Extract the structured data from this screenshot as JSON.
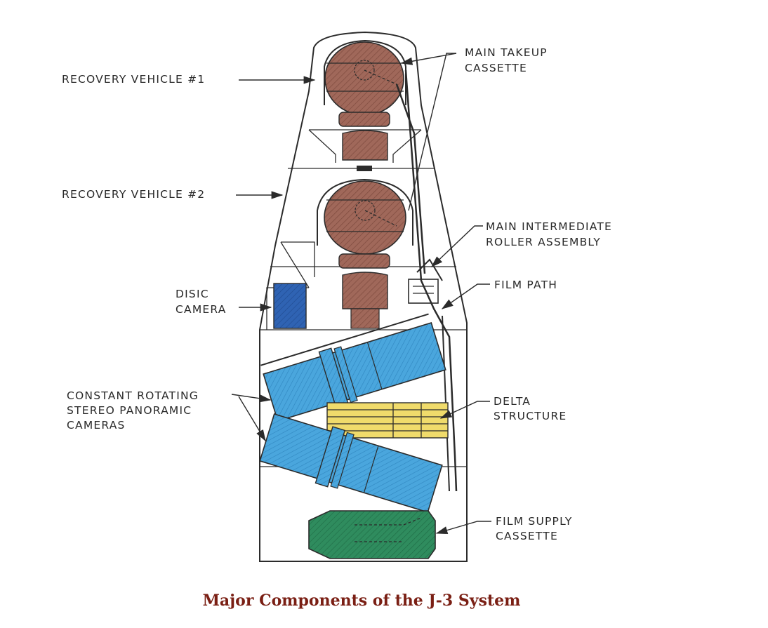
{
  "labels": {
    "recovery_vehicle_1": "RECOVERY VEHICLE #1",
    "recovery_vehicle_2": "RECOVERY VEHICLE #2",
    "main_takeup_cassette": [
      "MAIN TAKEUP",
      "CASSETTE"
    ],
    "main_intermediate_roller_assembly": [
      "MAIN INTERMEDIATE",
      "ROLLER ASSEMBLY"
    ],
    "film_path": "FILM PATH",
    "disic_camera": [
      "DISIC",
      "CAMERA"
    ],
    "constant_rotating_stereo_panoramic_cameras": [
      "CONSTANT ROTATING",
      "STEREO PANORAMIC",
      "CAMERAS"
    ],
    "delta_structure": [
      "DELTA",
      "STRUCTURE"
    ],
    "film_supply_cassette": [
      "FILM SUPPLY",
      "CASSETTE"
    ]
  },
  "caption": "Major Components of the J-3 System",
  "colors": {
    "recovery_cassette": "#a0685a",
    "disic_camera": "#2f63b3",
    "panoramic_cameras": "#4aa6dd",
    "delta_structure": "#f0db6b",
    "film_supply_cassette": "#2f8c5e",
    "caption": "#7a1f14"
  }
}
